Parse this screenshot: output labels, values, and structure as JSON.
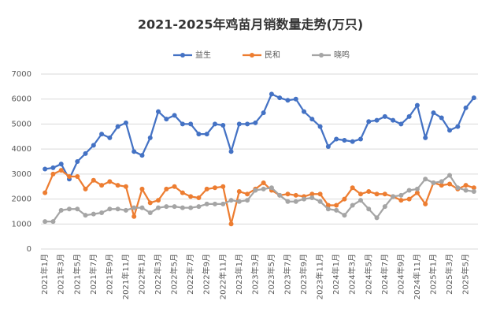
{
  "chart_data": {
    "type": "line",
    "title": "2021-2025年鸡苗月销数量走势(万只)",
    "categories": [
      "2021年1月",
      null,
      "2021年3月",
      null,
      "2021年5月",
      null,
      "2021年7月",
      null,
      "2021年9月",
      null,
      "2021年11月",
      null,
      "2022年1月",
      null,
      "2022年3月",
      null,
      "2022年5月",
      null,
      "2022年7月",
      null,
      "2022年9月",
      null,
      "2022年11月",
      null,
      "2023年1月",
      null,
      "2023年3月",
      null,
      "2023年5月",
      null,
      "2023年7月",
      null,
      "2023年9月",
      null,
      "2023年11月",
      null,
      "2024年1月",
      null,
      "2024年3月",
      null,
      "2024年5月",
      null,
      "2024年7月",
      null,
      "2024年9月",
      null,
      "2024年11月",
      null,
      "2025年1月",
      null,
      "2025年3月",
      null,
      "2025年5月",
      null
    ],
    "series": [
      {
        "name": "益生",
        "color": "#4472c4",
        "values": [
          3200,
          3250,
          3400,
          2800,
          3500,
          3820,
          4150,
          4600,
          4450,
          4900,
          5050,
          3900,
          3750,
          4450,
          5500,
          5200,
          5350,
          5000,
          5000,
          4600,
          4600,
          5000,
          4950,
          3900,
          5000,
          5000,
          5050,
          5450,
          6200,
          6050,
          5950,
          6000,
          5500,
          5200,
          4900,
          4100,
          4400,
          4350,
          4300,
          4400,
          5100,
          5150,
          5300,
          5150,
          5000,
          5300,
          5750,
          4450,
          5450,
          5250,
          4750,
          4900,
          5650,
          6050
        ]
      },
      {
        "name": "民和",
        "color": "#ed7d31",
        "values": [
          2250,
          3000,
          3150,
          2900,
          2900,
          2400,
          2750,
          2550,
          2700,
          2550,
          2500,
          1300,
          2400,
          1850,
          1950,
          2400,
          2500,
          2250,
          2100,
          2050,
          2400,
          2450,
          2500,
          1000,
          2300,
          2200,
          2400,
          2650,
          2350,
          2150,
          2200,
          2150,
          2100,
          2200,
          2200,
          1750,
          1750,
          2000,
          2450,
          2200,
          2300,
          2200,
          2200,
          2100,
          1950,
          2000,
          2250,
          1800,
          2650,
          2550,
          2600,
          2400,
          2550,
          2450
        ]
      },
      {
        "name": "晓鸣",
        "color": "#a5a5a5",
        "values": [
          1100,
          1100,
          1550,
          1600,
          1600,
          1350,
          1400,
          1450,
          1600,
          1600,
          1550,
          1650,
          1650,
          1450,
          1650,
          1700,
          1700,
          1650,
          1650,
          1700,
          1800,
          1800,
          1800,
          1950,
          1900,
          1950,
          2350,
          2400,
          2450,
          2150,
          1900,
          1900,
          2000,
          2050,
          1900,
          1600,
          1550,
          1350,
          1750,
          1950,
          1600,
          1250,
          1700,
          2100,
          2150,
          2350,
          2400,
          2800,
          2650,
          2700,
          2950,
          2450,
          2350,
          2300
        ]
      }
    ],
    "ylim": [
      0,
      7000
    ],
    "yticks": [
      0,
      1000,
      2000,
      3000,
      4000,
      5000,
      6000,
      7000
    ],
    "grid": true,
    "legend": "top"
  }
}
